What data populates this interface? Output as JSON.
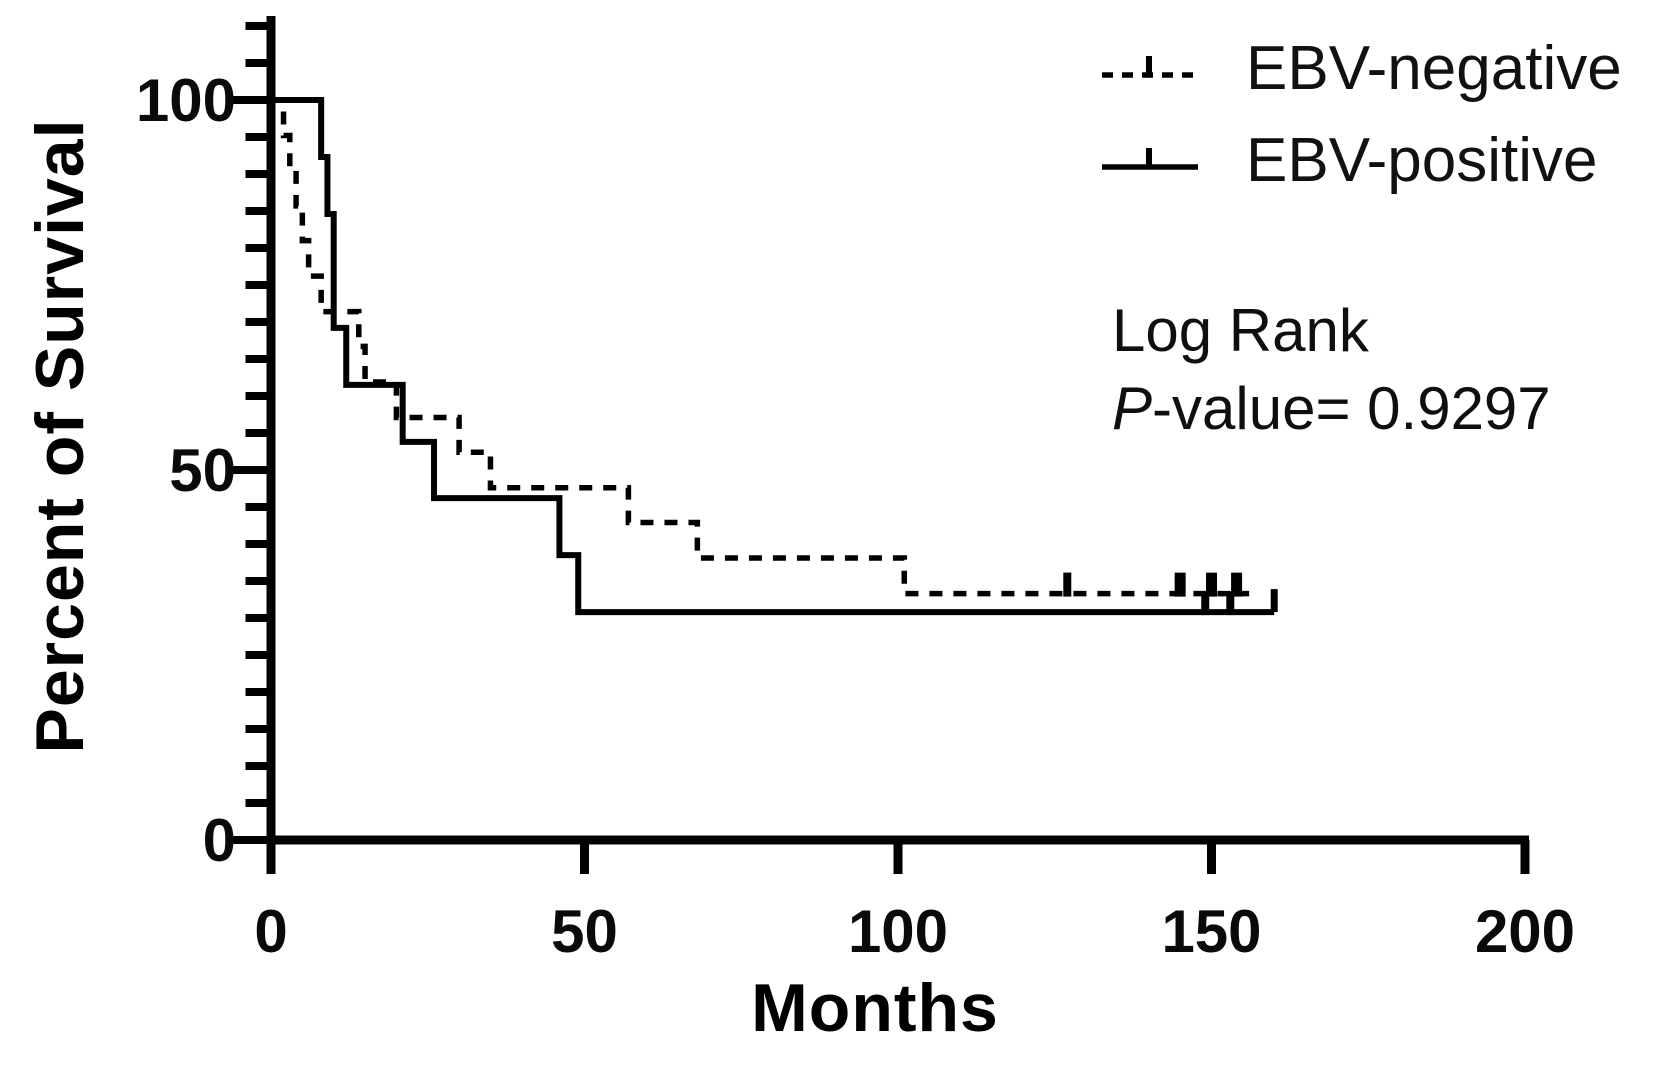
{
  "chart_data": {
    "type": "line",
    "subtype": "kaplan-meier-step",
    "title": "",
    "xlabel": "Months",
    "ylabel": "Percent of Survival",
    "xlim": [
      0,
      200
    ],
    "ylim": [
      0,
      100
    ],
    "xticks": [
      0,
      50,
      100,
      150,
      200
    ],
    "yticks": [
      0,
      50,
      100
    ],
    "y_minor_tick_step": 5,
    "grid": false,
    "legend_position": "top-right",
    "line_color": "#000000",
    "series": [
      {
        "name": "EBV-negative",
        "style": "dashed",
        "color": "#000000",
        "steps_pct": [
          [
            0,
            100
          ],
          [
            2,
            95.2
          ],
          [
            3,
            90.5
          ],
          [
            4,
            85.7
          ],
          [
            5,
            81.0
          ],
          [
            6,
            76.2
          ],
          [
            8,
            71.4
          ],
          [
            14,
            66.7
          ],
          [
            15,
            61.9
          ],
          [
            20,
            57.1
          ],
          [
            30,
            52.4
          ],
          [
            35,
            47.6
          ],
          [
            57,
            42.9
          ],
          [
            68,
            38.1
          ],
          [
            101,
            33.3
          ]
        ],
        "end_month": 156,
        "censor_months": [
          127,
          145,
          150,
          154
        ],
        "end_tick": false
      },
      {
        "name": "EBV-positive",
        "style": "solid",
        "color": "#000000",
        "steps_pct": [
          [
            0,
            100
          ],
          [
            8,
            92.3
          ],
          [
            9,
            84.6
          ],
          [
            10,
            69.2
          ],
          [
            12,
            61.5
          ],
          [
            21,
            53.8
          ],
          [
            26,
            46.2
          ],
          [
            46,
            38.5
          ],
          [
            49,
            30.8
          ]
        ],
        "end_month": 160,
        "censor_months": [
          149,
          153
        ],
        "end_tick": true
      }
    ],
    "annotation": {
      "line1": "Log Rank",
      "p_italic": "P",
      "p_rest": "-value= 0.9297"
    }
  }
}
